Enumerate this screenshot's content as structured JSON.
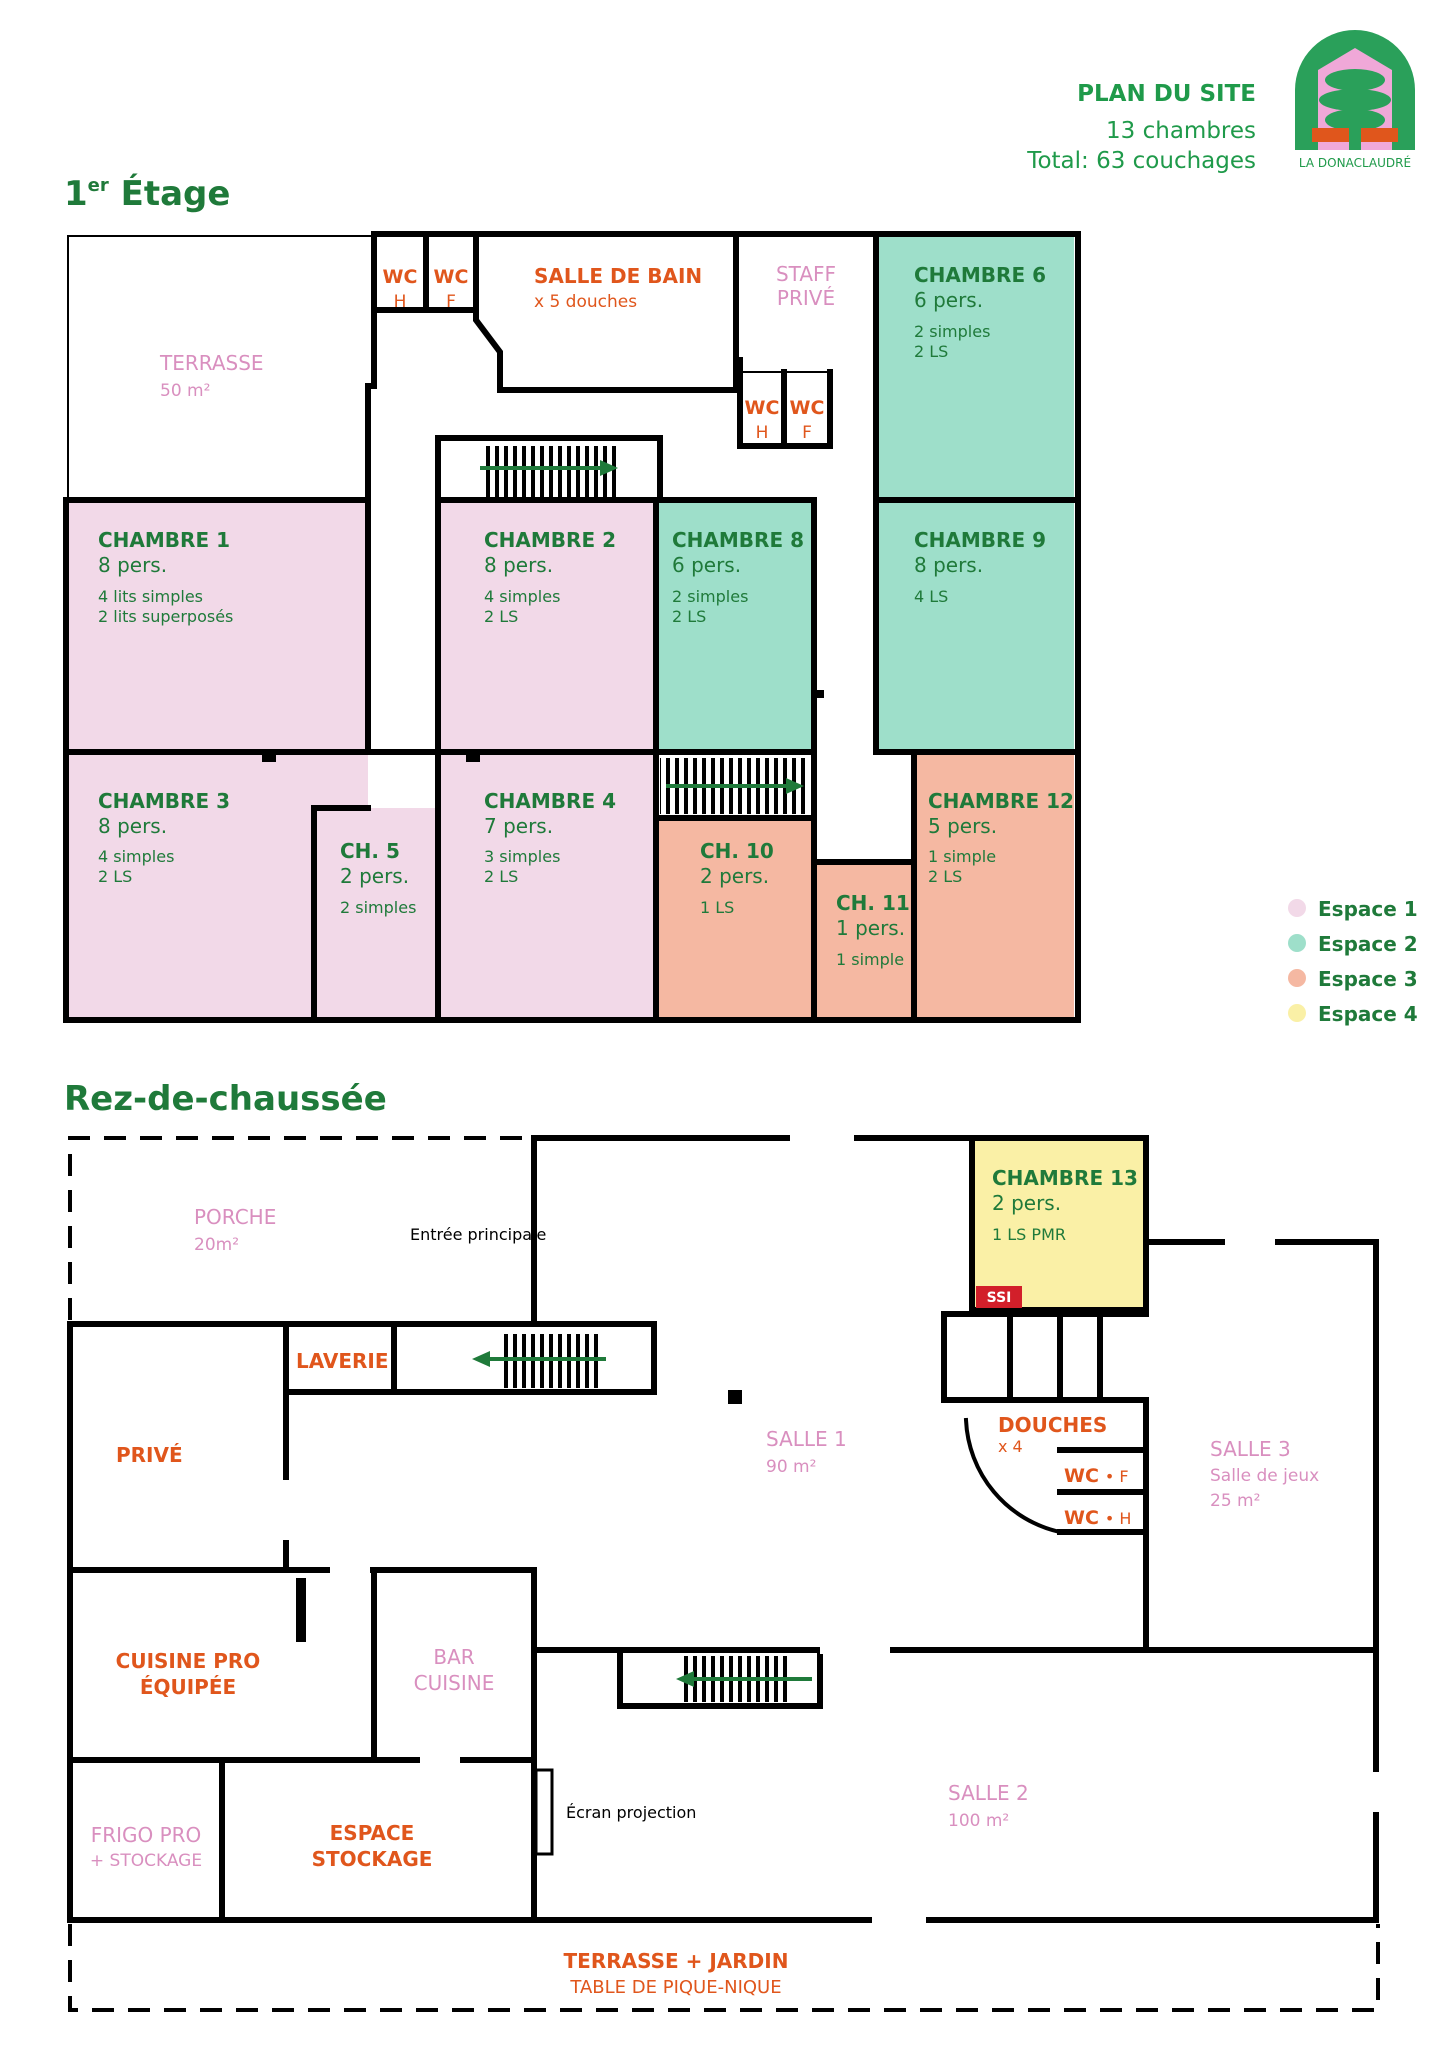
{
  "header": {
    "title": "PLAN DU SITE",
    "rooms": "13 chambres",
    "total": "Total: 63 couchages",
    "logo_text": "LA DONACLAUDRÉ"
  },
  "floor1": {
    "title_main": "1",
    "title_sup": "er",
    "title_rest": " Étage",
    "terrasse": {
      "name": "TERRASSE",
      "area": "50 m²"
    },
    "wc_h": {
      "name": "WC",
      "sub": "H"
    },
    "wc_f": {
      "name": "WC",
      "sub": "F"
    },
    "wc2_h": {
      "name": "WC",
      "sub": "H"
    },
    "wc2_f": {
      "name": "WC",
      "sub": "F"
    },
    "sdb": {
      "name": "SALLE DE BAIN",
      "sub": "x 5 douches"
    },
    "staff": {
      "line1": "STAFF",
      "line2": "PRIVÉ"
    },
    "ch1": {
      "name": "CHAMBRE 1",
      "cap": "8 pers.",
      "d1": "4 lits simples",
      "d2": "2 lits superposés"
    },
    "ch2": {
      "name": "CHAMBRE 2",
      "cap": "8 pers.",
      "d1": "4 simples",
      "d2": "2 LS"
    },
    "ch3": {
      "name": "CHAMBRE 3",
      "cap": "8 pers.",
      "d1": "4 simples",
      "d2": "2 LS"
    },
    "ch4": {
      "name": "CHAMBRE 4",
      "cap": "7 pers.",
      "d1": "3 simples",
      "d2": "2 LS"
    },
    "ch5": {
      "name": "CH. 5",
      "cap": "2 pers.",
      "d1": "2 simples"
    },
    "ch6": {
      "name": "CHAMBRE 6",
      "cap": "6 pers.",
      "d1": "2 simples",
      "d2": "2 LS"
    },
    "ch8": {
      "name": "CHAMBRE 8",
      "cap": "6 pers.",
      "d1": "2 simples",
      "d2": "2 LS"
    },
    "ch9": {
      "name": "CHAMBRE 9",
      "cap": "8 pers.",
      "d1": "4 LS"
    },
    "ch10": {
      "name": "CH. 10",
      "cap": "2 pers.",
      "d1": "1 LS"
    },
    "ch11": {
      "name": "CH. 11",
      "cap": "1 pers.",
      "d1": "1 simple"
    },
    "ch12": {
      "name": "CHAMBRE 12",
      "cap": "5 pers.",
      "d1": "1 simple",
      "d2": "2 LS"
    }
  },
  "legend": [
    {
      "label": "Espace 1",
      "color": "#f2d9e8"
    },
    {
      "label": "Espace 2",
      "color": "#9edfca"
    },
    {
      "label": "Espace 3",
      "color": "#f5b8a2"
    },
    {
      "label": "Espace 4",
      "color": "#faf0a6"
    }
  ],
  "ground": {
    "title": "Rez-de-chaussée",
    "porche": {
      "name": "PORCHE",
      "area": "20m²"
    },
    "entree": "Entrée principale",
    "ch13": {
      "name": "CHAMBRE 13",
      "cap": "2 pers.",
      "d1": "1 LS PMR"
    },
    "ssi": "SSI",
    "laverie": "LAVERIE",
    "prive": "PRIVÉ",
    "salle1": {
      "name": "SALLE 1",
      "area": "90 m²"
    },
    "douches": {
      "name": "DOUCHES",
      "sub": "x 4"
    },
    "wcf": {
      "name": "WC",
      "sub": "• F"
    },
    "wch": {
      "name": "WC",
      "sub": "• H"
    },
    "salle3": {
      "name": "SALLE 3",
      "sub": "Salle de jeux",
      "area": "25 m²"
    },
    "cuisine": {
      "l1": "CUISINE PRO",
      "l2": "ÉQUIPÉE"
    },
    "bar": {
      "l1": "BAR",
      "l2": "CUISINE"
    },
    "frigo": {
      "l1": "FRIGO PRO",
      "l2": "+ STOCKAGE"
    },
    "stockage": {
      "l1": "ESPACE",
      "l2": "STOCKAGE"
    },
    "ecran": "Écran projection",
    "salle2": {
      "name": "SALLE 2",
      "area": "100 m²"
    },
    "terrasse": {
      "l1": "TERRASSE + JARDIN",
      "l2": "TABLE DE PIQUE-NIQUE"
    }
  },
  "colors": {
    "espace1": "#f2d9e8",
    "espace2": "#9edfca",
    "espace3": "#f5b8a2",
    "espace4": "#faf0a6",
    "green": "#1f7a3a",
    "orange": "#e0561c",
    "pink": "#d98fbf",
    "wall": "#000000"
  }
}
